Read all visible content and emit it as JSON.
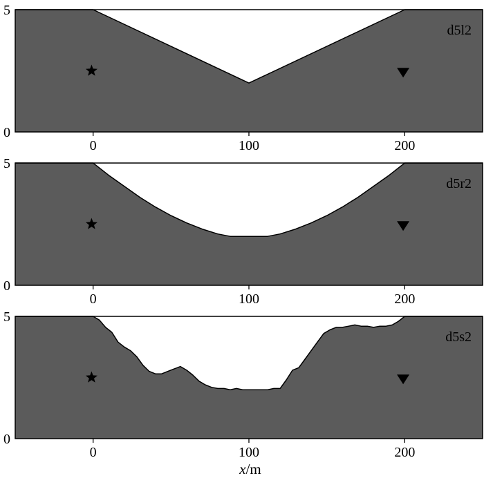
{
  "chart_data": [
    {
      "type": "area",
      "label": "d5l2",
      "xlim": [
        -50,
        250
      ],
      "ylim": [
        0,
        5
      ],
      "xticks": [
        0,
        100,
        200
      ],
      "yticks": [
        0,
        5
      ],
      "profile": {
        "x": [
          -50,
          0,
          100,
          200,
          250
        ],
        "y": [
          5,
          5,
          2,
          5,
          5
        ]
      },
      "source": {
        "x": -1,
        "y": 2.5,
        "marker": "star"
      },
      "receiver": {
        "x": 199,
        "y": 2.45,
        "marker": "triangle-down"
      }
    },
    {
      "type": "area",
      "label": "d5r2",
      "xlim": [
        -50,
        250
      ],
      "ylim": [
        0,
        5
      ],
      "xticks": [
        0,
        100,
        200
      ],
      "yticks": [
        0,
        5
      ],
      "profile": {
        "x": [
          -50,
          0,
          10,
          20,
          30,
          40,
          50,
          60,
          70,
          80,
          88,
          95,
          100,
          105,
          112,
          120,
          130,
          140,
          150,
          160,
          170,
          180,
          190,
          200,
          250
        ],
        "y": [
          5,
          5,
          4.5,
          4.05,
          3.6,
          3.2,
          2.85,
          2.55,
          2.3,
          2.1,
          2.0,
          2.0,
          2.0,
          2.0,
          2.0,
          2.1,
          2.3,
          2.55,
          2.85,
          3.2,
          3.6,
          4.05,
          4.5,
          5,
          5
        ]
      },
      "source": {
        "x": -1,
        "y": 2.5,
        "marker": "star"
      },
      "receiver": {
        "x": 199,
        "y": 2.45,
        "marker": "triangle-down"
      }
    },
    {
      "type": "area",
      "label": "d5s2",
      "xlim": [
        -50,
        250
      ],
      "ylim": [
        0,
        5
      ],
      "xticks": [
        0,
        100,
        200
      ],
      "yticks": [
        0,
        5
      ],
      "profile": {
        "x": [
          -50,
          0,
          4,
          8,
          12,
          16,
          20,
          24,
          28,
          32,
          36,
          40,
          44,
          48,
          52,
          56,
          60,
          64,
          68,
          72,
          76,
          80,
          84,
          88,
          92,
          96,
          100,
          104,
          108,
          112,
          116,
          120,
          124,
          128,
          132,
          136,
          140,
          144,
          148,
          152,
          156,
          160,
          164,
          168,
          172,
          176,
          180,
          184,
          188,
          192,
          196,
          200,
          250
        ],
        "y": [
          5,
          5,
          4.85,
          4.55,
          4.35,
          3.95,
          3.75,
          3.6,
          3.35,
          3.0,
          2.75,
          2.65,
          2.65,
          2.75,
          2.85,
          2.95,
          2.8,
          2.6,
          2.35,
          2.2,
          2.1,
          2.05,
          2.05,
          2.0,
          2.05,
          2.0,
          2.0,
          2.0,
          2.0,
          2.0,
          2.05,
          2.05,
          2.4,
          2.8,
          2.9,
          3.25,
          3.6,
          3.95,
          4.3,
          4.45,
          4.55,
          4.55,
          4.6,
          4.65,
          4.6,
          4.6,
          4.55,
          4.6,
          4.6,
          4.65,
          4.8,
          5,
          5
        ]
      },
      "source": {
        "x": -1,
        "y": 2.5,
        "marker": "star"
      },
      "receiver": {
        "x": 199,
        "y": 2.45,
        "marker": "triangle-down"
      }
    }
  ],
  "xlabel_var": "x",
  "xlabel_unit": "/m",
  "colors": {
    "fill": "#5b5b5b",
    "line": "#000000",
    "background": "#ffffff"
  }
}
